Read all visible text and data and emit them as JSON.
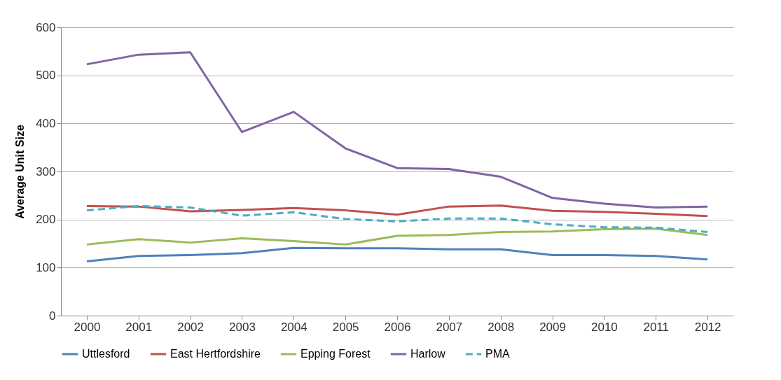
{
  "chart_data": {
    "type": "line",
    "ylabel": "Average Unit Size",
    "categories": [
      "2000",
      "2001",
      "2002",
      "2003",
      "2004",
      "2005",
      "2006",
      "2007",
      "2008",
      "2009",
      "2010",
      "2011",
      "2012"
    ],
    "ylim": [
      0,
      600
    ],
    "yticks": [
      0,
      100,
      200,
      300,
      400,
      500,
      600
    ],
    "grid": "y",
    "legend": "bottom",
    "marker": "none",
    "series": [
      {
        "name": "Uttlesford",
        "color": "#4f81bd",
        "line_style": "solid",
        "values": [
          113,
          124,
          126,
          130,
          141,
          140,
          140,
          138,
          138,
          126,
          126,
          124,
          117
        ]
      },
      {
        "name": "East Hertfordshire",
        "color": "#c0504d",
        "line_style": "solid",
        "values": [
          228,
          227,
          217,
          220,
          224,
          219,
          210,
          227,
          229,
          218,
          216,
          212,
          207
        ]
      },
      {
        "name": "Epping Forest",
        "color": "#9bbb59",
        "line_style": "solid",
        "values": [
          148,
          159,
          152,
          161,
          155,
          148,
          166,
          168,
          174,
          175,
          180,
          181,
          168
        ]
      },
      {
        "name": "Harlow",
        "color": "#8064a2",
        "line_style": "solid",
        "values": [
          523,
          543,
          548,
          382,
          424,
          348,
          307,
          305,
          289,
          245,
          233,
          225,
          227
        ]
      },
      {
        "name": "PMA",
        "color": "#4bacc6",
        "line_style": "dashed",
        "values": [
          219,
          228,
          225,
          208,
          215,
          201,
          196,
          202,
          202,
          190,
          184,
          183,
          174
        ]
      }
    ]
  }
}
